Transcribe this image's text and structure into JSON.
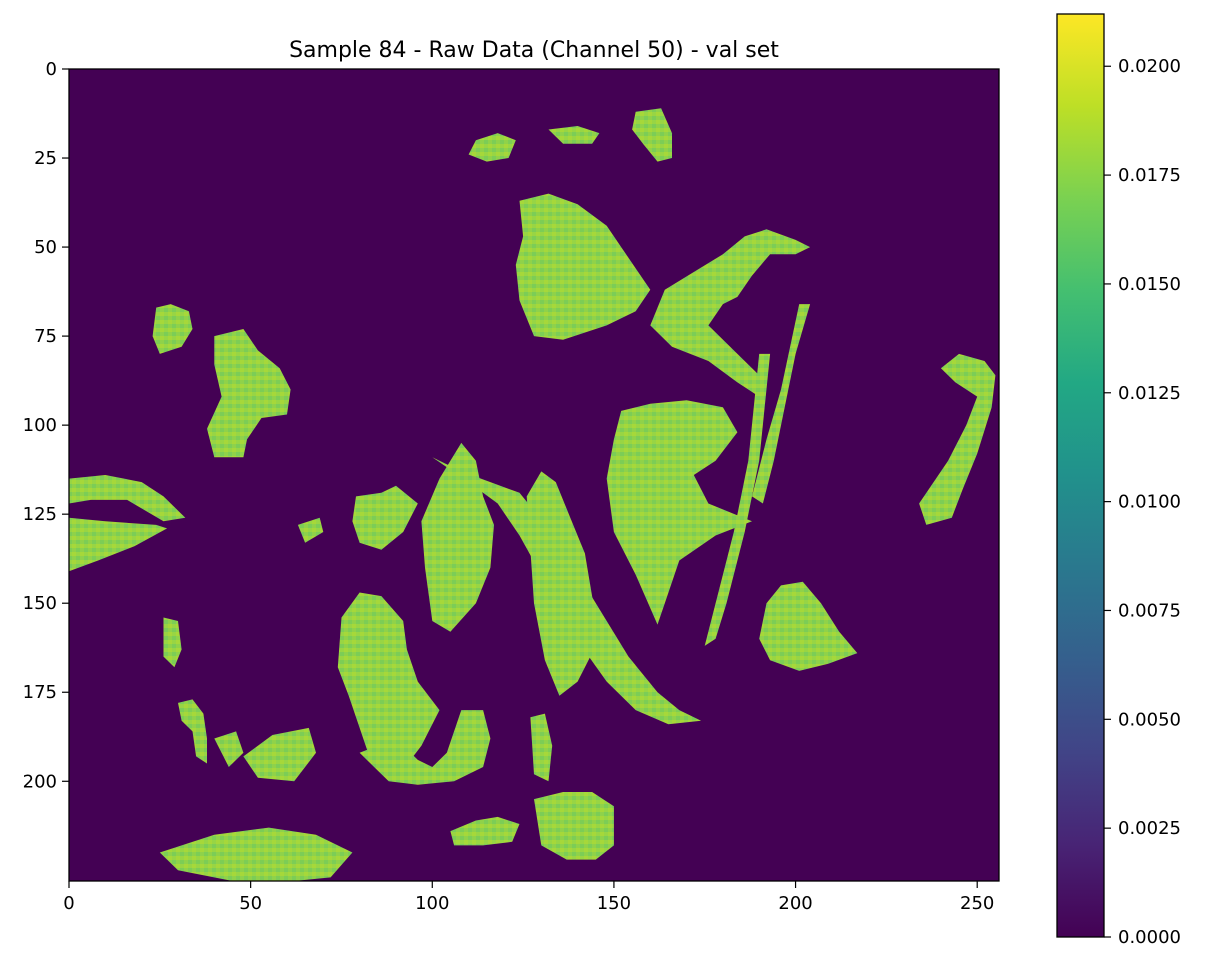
{
  "chart_data": {
    "type": "heatmap",
    "title": "Sample 84 - Raw Data (Channel 50) - val set",
    "xlabel": "",
    "ylabel": "",
    "x_range": [
      0,
      256
    ],
    "y_range": [
      0,
      228
    ],
    "y_inverted": true,
    "grid": false,
    "x_ticks": [
      "0",
      "50",
      "100",
      "150",
      "200",
      "250"
    ],
    "y_ticks": [
      "0",
      "25",
      "50",
      "75",
      "100",
      "125",
      "150",
      "175",
      "200"
    ],
    "colormap": "viridis",
    "background_value": 0.0,
    "typical_foreground_value": 0.0175,
    "value_range": [
      0.0,
      0.0212
    ],
    "colorbar": {
      "placement": "right",
      "ticks": [
        "0.0000",
        "0.0025",
        "0.0050",
        "0.0075",
        "0.0100",
        "0.0125",
        "0.0150",
        "0.0175",
        "0.0200"
      ]
    },
    "foreground_regions": [
      {
        "id": "r-left-strip-top",
        "points": [
          [
            0,
            115
          ],
          [
            10,
            114
          ],
          [
            20,
            116
          ],
          [
            26,
            120
          ],
          [
            32,
            126
          ],
          [
            26,
            127
          ],
          [
            16,
            121
          ],
          [
            6,
            121
          ],
          [
            0,
            122
          ]
        ]
      },
      {
        "id": "r-left-strip-bot",
        "points": [
          [
            0,
            126
          ],
          [
            10,
            127
          ],
          [
            24,
            128
          ],
          [
            27,
            129
          ],
          [
            18,
            134
          ],
          [
            8,
            138
          ],
          [
            0,
            141
          ]
        ]
      },
      {
        "id": "r-blob-23-70",
        "points": [
          [
            24,
            67
          ],
          [
            28,
            66
          ],
          [
            33,
            68
          ],
          [
            34,
            73
          ],
          [
            31,
            78
          ],
          [
            25,
            80
          ],
          [
            23,
            75
          ]
        ]
      },
      {
        "id": "r-blob-45-85",
        "points": [
          [
            40,
            75
          ],
          [
            48,
            73
          ],
          [
            52,
            79
          ],
          [
            58,
            84
          ],
          [
            61,
            90
          ],
          [
            60,
            97
          ],
          [
            53,
            98
          ],
          [
            49,
            104
          ],
          [
            48,
            109
          ],
          [
            40,
            109
          ],
          [
            38,
            101
          ],
          [
            42,
            92
          ],
          [
            40,
            83
          ]
        ]
      },
      {
        "id": "r-blob-34-178",
        "points": [
          [
            30,
            178
          ],
          [
            34,
            177
          ],
          [
            37,
            181
          ],
          [
            38,
            188
          ],
          [
            38,
            195
          ],
          [
            35,
            193
          ],
          [
            34,
            186
          ],
          [
            31,
            183
          ]
        ]
      },
      {
        "id": "r-blob-46-190",
        "points": [
          [
            40,
            188
          ],
          [
            46,
            186
          ],
          [
            48,
            192
          ],
          [
            44,
            196
          ]
        ]
      },
      {
        "id": "r-blob-27-160",
        "points": [
          [
            26,
            154
          ],
          [
            30,
            155
          ],
          [
            31,
            163
          ],
          [
            29,
            168
          ],
          [
            26,
            165
          ]
        ]
      },
      {
        "id": "r-blob-60-190",
        "points": [
          [
            48,
            193
          ],
          [
            56,
            187
          ],
          [
            66,
            185
          ],
          [
            68,
            192
          ],
          [
            62,
            200
          ],
          [
            52,
            199
          ]
        ]
      },
      {
        "id": "r-bottom-left",
        "points": [
          [
            25,
            220
          ],
          [
            40,
            215
          ],
          [
            55,
            213
          ],
          [
            68,
            215
          ],
          [
            78,
            220
          ],
          [
            72,
            227
          ],
          [
            62,
            228
          ],
          [
            45,
            228
          ],
          [
            30,
            225
          ]
        ]
      },
      {
        "id": "r-blob-90-125",
        "points": [
          [
            79,
            120
          ],
          [
            86,
            119
          ],
          [
            90,
            117
          ],
          [
            96,
            122
          ],
          [
            92,
            130
          ],
          [
            86,
            135
          ],
          [
            80,
            133
          ],
          [
            78,
            127
          ]
        ]
      },
      {
        "id": "r-blob-65-125",
        "points": [
          [
            63,
            128
          ],
          [
            69,
            126
          ],
          [
            70,
            130
          ],
          [
            65,
            133
          ]
        ]
      },
      {
        "id": "r-blob-85-165",
        "points": [
          [
            75,
            154
          ],
          [
            80,
            147
          ],
          [
            86,
            148
          ],
          [
            92,
            155
          ],
          [
            93,
            163
          ],
          [
            96,
            172
          ],
          [
            102,
            180
          ],
          [
            97,
            190
          ],
          [
            91,
            198
          ],
          [
            83,
            194
          ],
          [
            77,
            176
          ],
          [
            74,
            168
          ]
        ]
      },
      {
        "id": "r-blob-110-130",
        "points": [
          [
            97,
            127
          ],
          [
            102,
            115
          ],
          [
            108,
            105
          ],
          [
            112,
            110
          ],
          [
            114,
            120
          ],
          [
            117,
            128
          ],
          [
            116,
            140
          ],
          [
            112,
            150
          ],
          [
            105,
            158
          ],
          [
            100,
            155
          ],
          [
            98,
            140
          ]
        ]
      },
      {
        "id": "r-blob-100-200",
        "points": [
          [
            80,
            192
          ],
          [
            90,
            188
          ],
          [
            96,
            194
          ],
          [
            100,
            196
          ],
          [
            104,
            192
          ],
          [
            108,
            180
          ],
          [
            114,
            180
          ],
          [
            116,
            188
          ],
          [
            114,
            196
          ],
          [
            106,
            200
          ],
          [
            96,
            201
          ],
          [
            88,
            200
          ]
        ]
      },
      {
        "id": "r-diag-stripe",
        "points": [
          [
            100,
            109
          ],
          [
            108,
            113
          ],
          [
            116,
            116
          ],
          [
            124,
            119
          ],
          [
            128,
            124
          ],
          [
            133,
            130
          ],
          [
            138,
            136
          ],
          [
            142,
            145
          ],
          [
            148,
            155
          ],
          [
            154,
            165
          ],
          [
            162,
            175
          ],
          [
            168,
            180
          ],
          [
            174,
            183
          ],
          [
            165,
            184
          ],
          [
            156,
            180
          ],
          [
            148,
            172
          ],
          [
            141,
            162
          ],
          [
            136,
            152
          ],
          [
            130,
            142
          ],
          [
            124,
            131
          ],
          [
            118,
            122
          ],
          [
            110,
            116
          ]
        ]
      },
      {
        "id": "r-blob-132-150",
        "points": [
          [
            126,
            120
          ],
          [
            130,
            113
          ],
          [
            134,
            116
          ],
          [
            138,
            126
          ],
          [
            142,
            136
          ],
          [
            144,
            148
          ],
          [
            146,
            160
          ],
          [
            140,
            172
          ],
          [
            135,
            176
          ],
          [
            131,
            166
          ],
          [
            128,
            150
          ],
          [
            127,
            135
          ]
        ]
      },
      {
        "id": "r-blob-145-210",
        "points": [
          [
            128,
            205
          ],
          [
            136,
            203
          ],
          [
            144,
            203
          ],
          [
            150,
            207
          ],
          [
            150,
            218
          ],
          [
            145,
            222
          ],
          [
            137,
            222
          ],
          [
            130,
            218
          ]
        ]
      },
      {
        "id": "r-blob-130-190",
        "points": [
          [
            127,
            182
          ],
          [
            131,
            181
          ],
          [
            133,
            190
          ],
          [
            132,
            200
          ],
          [
            128,
            198
          ]
        ]
      },
      {
        "id": "r-blob-110-220",
        "points": [
          [
            105,
            214
          ],
          [
            112,
            211
          ],
          [
            118,
            210
          ],
          [
            124,
            212
          ],
          [
            122,
            217
          ],
          [
            114,
            218
          ],
          [
            106,
            218
          ]
        ]
      },
      {
        "id": "r-big-top",
        "points": [
          [
            124,
            37
          ],
          [
            132,
            35
          ],
          [
            140,
            38
          ],
          [
            148,
            44
          ],
          [
            152,
            50
          ],
          [
            156,
            56
          ],
          [
            160,
            62
          ],
          [
            156,
            68
          ],
          [
            148,
            72
          ],
          [
            136,
            76
          ],
          [
            128,
            75
          ],
          [
            124,
            65
          ],
          [
            123,
            55
          ],
          [
            125,
            47
          ]
        ]
      },
      {
        "id": "r-blob-120-20",
        "points": [
          [
            112,
            20
          ],
          [
            118,
            18
          ],
          [
            123,
            20
          ],
          [
            121,
            25
          ],
          [
            115,
            26
          ],
          [
            110,
            24
          ]
        ]
      },
      {
        "id": "r-blob-135-18",
        "points": [
          [
            132,
            17
          ],
          [
            140,
            16
          ],
          [
            146,
            18
          ],
          [
            144,
            21
          ],
          [
            136,
            21
          ]
        ]
      },
      {
        "id": "r-blob-160-18",
        "points": [
          [
            156,
            12
          ],
          [
            163,
            11
          ],
          [
            166,
            18
          ],
          [
            166,
            25
          ],
          [
            162,
            26
          ],
          [
            158,
            21
          ],
          [
            155,
            17
          ]
        ]
      },
      {
        "id": "r-arc-right",
        "points": [
          [
            164,
            62
          ],
          [
            172,
            57
          ],
          [
            180,
            52
          ],
          [
            186,
            47
          ],
          [
            192,
            45
          ],
          [
            200,
            48
          ],
          [
            204,
            50
          ],
          [
            200,
            52
          ],
          [
            193,
            52
          ],
          [
            188,
            58
          ],
          [
            184,
            64
          ],
          [
            180,
            66
          ],
          [
            176,
            72
          ],
          [
            184,
            80
          ],
          [
            190,
            86
          ],
          [
            190,
            92
          ],
          [
            184,
            88
          ],
          [
            176,
            82
          ],
          [
            166,
            78
          ],
          [
            160,
            72
          ]
        ]
      },
      {
        "id": "r-big-mid",
        "points": [
          [
            152,
            96
          ],
          [
            160,
            94
          ],
          [
            170,
            93
          ],
          [
            180,
            95
          ],
          [
            184,
            102
          ],
          [
            178,
            110
          ],
          [
            172,
            114
          ],
          [
            176,
            122
          ],
          [
            188,
            127
          ],
          [
            178,
            131
          ],
          [
            168,
            138
          ],
          [
            164,
            150
          ],
          [
            162,
            156
          ],
          [
            156,
            142
          ],
          [
            150,
            130
          ],
          [
            148,
            115
          ],
          [
            150,
            104
          ]
        ]
      },
      {
        "id": "r-blob-200-160",
        "points": [
          [
            192,
            150
          ],
          [
            196,
            145
          ],
          [
            202,
            144
          ],
          [
            207,
            150
          ],
          [
            212,
            158
          ],
          [
            217,
            164
          ],
          [
            209,
            167
          ],
          [
            201,
            169
          ],
          [
            193,
            166
          ],
          [
            190,
            160
          ]
        ]
      },
      {
        "id": "r-edge-right",
        "points": [
          [
            240,
            84
          ],
          [
            245,
            80
          ],
          [
            252,
            82
          ],
          [
            255,
            86
          ],
          [
            254,
            95
          ],
          [
            250,
            108
          ],
          [
            246,
            118
          ],
          [
            243,
            126
          ],
          [
            236,
            128
          ],
          [
            234,
            122
          ],
          [
            242,
            110
          ],
          [
            247,
            100
          ],
          [
            250,
            92
          ],
          [
            244,
            88
          ]
        ]
      },
      {
        "id": "r-streak-1",
        "points": [
          [
            190,
            80
          ],
          [
            193,
            80
          ],
          [
            190,
            110
          ],
          [
            186,
            130
          ],
          [
            181,
            150
          ],
          [
            178,
            160
          ],
          [
            175,
            162
          ],
          [
            178,
            150
          ],
          [
            183,
            130
          ],
          [
            187,
            110
          ]
        ]
      },
      {
        "id": "r-streak-2",
        "points": [
          [
            201,
            66
          ],
          [
            204,
            66
          ],
          [
            200,
            80
          ],
          [
            197,
            95
          ],
          [
            194,
            110
          ],
          [
            191,
            122
          ],
          [
            188,
            120
          ],
          [
            192,
            104
          ],
          [
            196,
            90
          ]
        ]
      }
    ]
  }
}
